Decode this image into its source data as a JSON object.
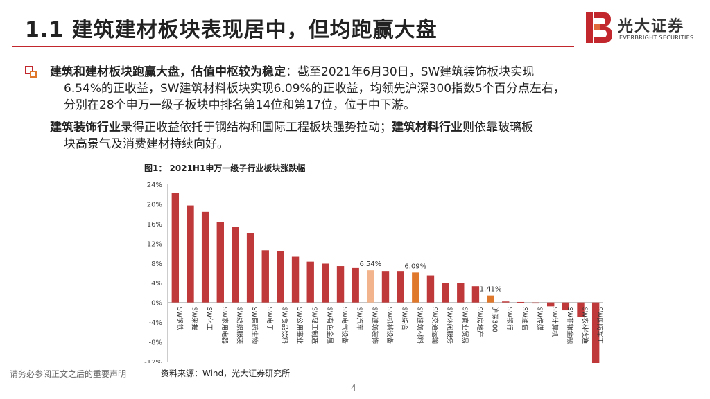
{
  "header": {
    "title": "1.1 建筑建材板块表现居中，但均跑赢大盘",
    "logo_cn": "光大证券",
    "logo_en": "EVERBRIGHT SECURITIES"
  },
  "body": {
    "p1_emph": "建筑和建材板块跑赢大盘，估值中枢较为稳定",
    "p1_text1": "：截至2021年6月30日，SW建筑装饰板块实现",
    "p1_text2": "6.54%的正收益，SW建筑材料板块实现6.09%的正收益，均领先沪深300指数5个百分点左右，",
    "p1_text3": "分别在28个申万一级子板块中排名第14位和第17位，位于中下游。",
    "p2_emph1": "建筑装饰行业",
    "p2_text1": "录得正收益依托于钢结构和国际工程板块强势拉动；",
    "p2_emph2": "建筑材料行业",
    "p2_text2": "则依靠玻璃板",
    "p2_text3": "块高景气及消费建材持续向好。"
  },
  "chart_caption": "图1：  2021H1申万一级子行业板块涨跌幅",
  "source": "资料来源：Wind，光大证券研究所",
  "disclaimer": "请务必参阅正文之后的重要声明",
  "page_number": "4",
  "colors": {
    "brand_red": "#c1272d",
    "bar_red": "#c0393a",
    "bar_highlight": "#f2b48c",
    "bar_orange": "#e0782c"
  },
  "chart_data": {
    "type": "bar",
    "title": "2021H1申万一级子行业板块涨跌幅",
    "categories": [
      "SW钢铁",
      "SW采掘",
      "SW化工",
      "SW家用电器",
      "SW纺织服装",
      "SW医药生物",
      "SW电子",
      "SW食品饮料",
      "SW公用事业",
      "SW轻工制造",
      "SW有色金属",
      "SW电气设备",
      "SW汽车",
      "SW建筑装饰",
      "SW机械设备",
      "SW综合",
      "SW建筑材料",
      "SW交通运输",
      "SW休闲服务",
      "SW商业贸易",
      "SW房地产",
      "沪深300",
      "SW银行",
      "SW通信",
      "SW传媒",
      "SW计算机",
      "SW非银金融",
      "SW农林牧渔",
      "SW国防军工"
    ],
    "values": [
      22.3,
      19.7,
      18.4,
      16.4,
      15.3,
      14.1,
      10.6,
      10.4,
      9.3,
      8.3,
      7.9,
      7.4,
      7.0,
      6.54,
      6.4,
      6.4,
      6.09,
      5.5,
      4.0,
      3.9,
      3.3,
      1.41,
      0.2,
      0.1,
      -0.2,
      -0.8,
      -1.6,
      -3.0,
      -12.3
    ],
    "highlight": {
      "SW建筑装饰": "#f2b48c",
      "SW建筑材料": "#e0782c",
      "沪深300": "#e0782c"
    },
    "data_labels": {
      "SW建筑装饰": "6.54%",
      "SW建筑材料": "6.09%",
      "沪深300": "1.41%"
    },
    "yticks": [
      "24%",
      "20%",
      "16%",
      "12%",
      "8%",
      "4%",
      "0%",
      "-4%",
      "-8%",
      "-12%"
    ],
    "ylim": [
      -12,
      24
    ],
    "xlabel": "",
    "ylabel": ""
  }
}
